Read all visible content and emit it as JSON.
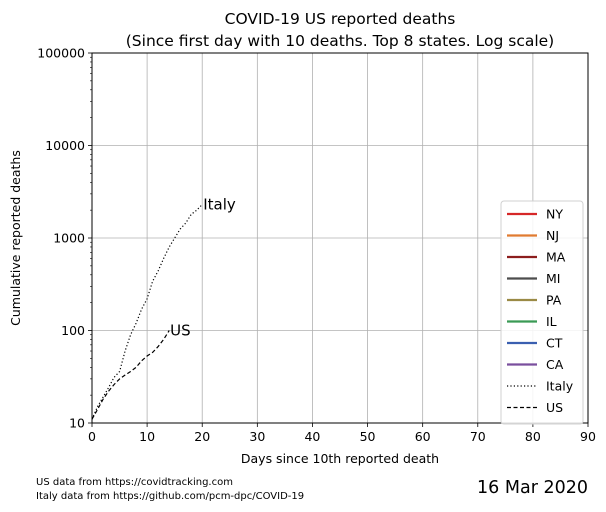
{
  "chart_data": {
    "type": "line",
    "title_line1": "COVID-19 US reported deaths",
    "title_line2": "(Since first day with 10 deaths. Top 8 states. Log scale)",
    "xlabel": "Days since 10th reported death",
    "ylabel": "Cumulative reported deaths",
    "xlim": [
      0,
      90
    ],
    "ylim": [
      10,
      100000
    ],
    "yscale": "log",
    "grid": true,
    "x_ticks": [
      0,
      10,
      20,
      30,
      40,
      50,
      60,
      70,
      80,
      90
    ],
    "y_ticks": [
      10,
      100,
      1000,
      10000,
      100000
    ],
    "y_tick_labels": [
      "10",
      "100",
      "1000",
      "10000",
      "100000"
    ],
    "legend_position": "center-right",
    "legend": [
      {
        "name": "NY",
        "color": "#d62728",
        "style": "solid"
      },
      {
        "name": "NJ",
        "color": "#e07b30",
        "style": "solid"
      },
      {
        "name": "MA",
        "color": "#8c1d1d",
        "style": "solid"
      },
      {
        "name": "MI",
        "color": "#4d4d4d",
        "style": "solid"
      },
      {
        "name": "PA",
        "color": "#9a8a45",
        "style": "solid"
      },
      {
        "name": "IL",
        "color": "#3a9a55",
        "style": "solid"
      },
      {
        "name": "CT",
        "color": "#3a5fb0",
        "style": "solid"
      },
      {
        "name": "CA",
        "color": "#7a4f9e",
        "style": "solid"
      },
      {
        "name": "Italy",
        "color": "#000000",
        "style": "dotted"
      },
      {
        "name": "US",
        "color": "#000000",
        "style": "dashed"
      }
    ],
    "series": [
      {
        "name": "Italy",
        "label": "Italy",
        "style": "dotted",
        "color": "#000000",
        "x": [
          0,
          1,
          2,
          3,
          4,
          5,
          6,
          7,
          8,
          9,
          10,
          11,
          12,
          13,
          14,
          15,
          16,
          17,
          18,
          19,
          20
        ],
        "y": [
          11,
          15,
          19,
          24,
          31,
          36,
          60,
          90,
          120,
          170,
          220,
          340,
          440,
          600,
          800,
          1000,
          1250,
          1450,
          1800,
          2000,
          2300
        ]
      },
      {
        "name": "US",
        "label": "US",
        "style": "dashed",
        "color": "#000000",
        "x": [
          0,
          1,
          2,
          3,
          4,
          5,
          6,
          7,
          8,
          9,
          10,
          11,
          12,
          13,
          14
        ],
        "y": [
          11,
          14,
          18,
          22,
          26,
          30,
          33,
          36,
          40,
          47,
          53,
          58,
          67,
          80,
          100
        ]
      }
    ]
  },
  "footer": {
    "source_us": "US data from https://covidtracking.com",
    "source_italy": "Italy data from https://github.com/pcm-dpc/COVID-19",
    "date": "16 Mar 2020"
  }
}
